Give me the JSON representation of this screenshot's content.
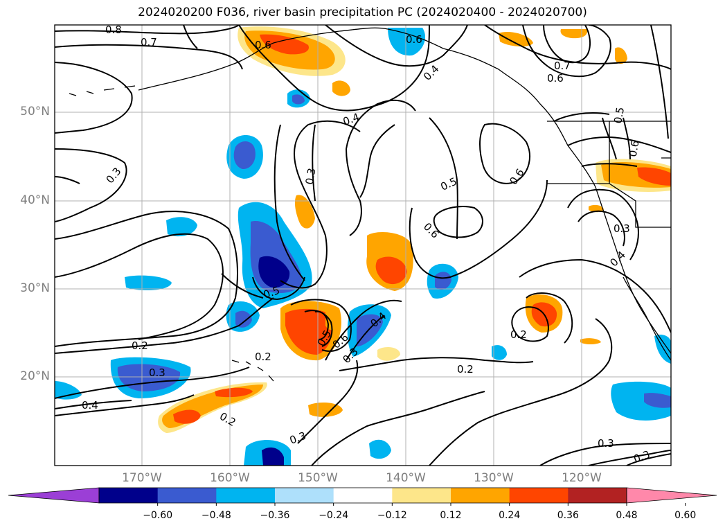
{
  "title": "2024020200 F036, river basin precipitation PC (2024020400 - 2024020700)",
  "map": {
    "lat_labels": [
      "50°N",
      "40°N",
      "30°N",
      "20°N"
    ],
    "lon_labels": [
      "170°W",
      "160°W",
      "150°W",
      "140°W",
      "130°W",
      "120°W"
    ],
    "contour_labels": [
      "0.8",
      "0.7",
      "0.6",
      "0.6",
      "0.7",
      "0.6",
      "0.4",
      "0.4",
      "0.3",
      "0.3",
      "0.5",
      "0.6",
      "0.6",
      "0.5",
      "0.4",
      "0.3",
      "0.5",
      "0.2",
      "0.2",
      "0.3",
      "0.2",
      "0.4",
      "0.6",
      "0.3",
      "0.2",
      "0.2",
      "0.4",
      "0.3",
      "0.3",
      "0.3",
      "0.5",
      "0.6"
    ]
  },
  "colorbar": {
    "ticks": [
      "−0.60",
      "−0.48",
      "−0.36",
      "−0.24",
      "−0.12",
      "0.12",
      "0.24",
      "0.36",
      "0.48",
      "0.60"
    ],
    "colors": [
      "#9b3fd6",
      "#00008b",
      "#3a5bd0",
      "#00b4f0",
      "#aee0fb",
      "#ffffff",
      "#fde68a",
      "#ffa500",
      "#ff4500",
      "#b22222",
      "#ff88aa"
    ]
  }
}
